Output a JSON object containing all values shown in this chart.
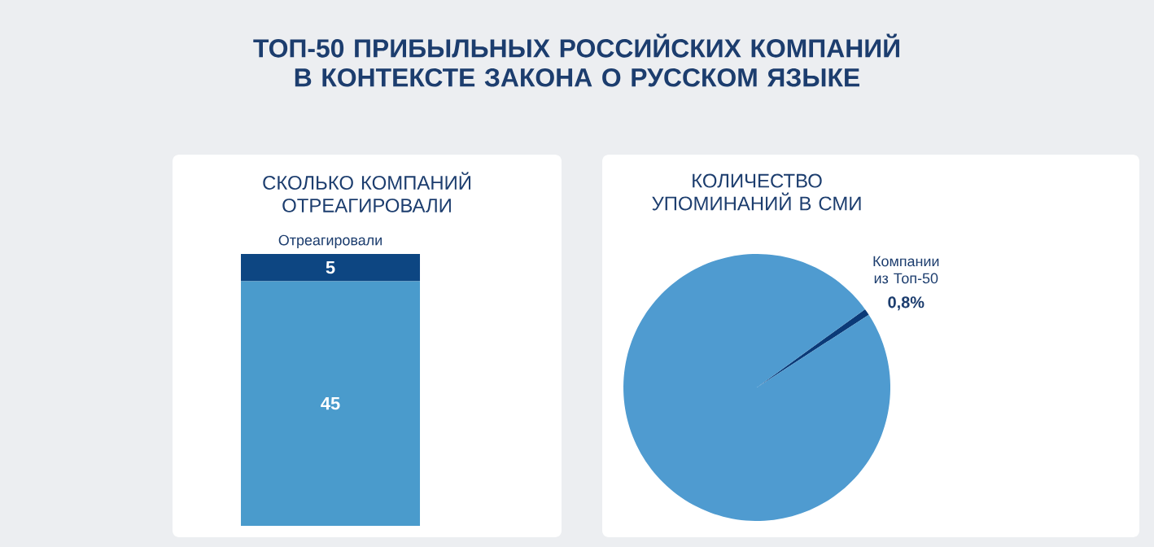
{
  "chart_data": [
    {
      "type": "bar",
      "title": "ТОП-50 ПРИБЫЛЬНЫХ РОССИЙСКИХ КОМПАНИЙ В КОНТЕКСТЕ ЗАКОНА О РУССКОМ ЯЗЫКЕ",
      "subtitle": "СКОЛЬКО КОМПАНИЙ ОТРЕАГИРОВАЛИ",
      "categories": [
        null
      ],
      "stacked": true,
      "tick_labels": false,
      "data_labels": true,
      "series": [
        {
          "color": "#4a9bcc",
          "values": [
            45
          ]
        },
        {
          "name": "Отреагировали",
          "color": "#0d4682",
          "values": [
            5
          ]
        }
      ]
    },
    {
      "type": "pie",
      "title": "КОЛИЧЕСТВО УПОМИНАНИЙ В СМИ",
      "categories": [
        "Компании из Топ-50",
        null
      ],
      "values": [
        0.8,
        99.2
      ],
      "colors": [
        "#0b3a78",
        "#4f9bd0"
      ],
      "value_labels": [
        "0,8%",
        null
      ]
    }
  ]
}
